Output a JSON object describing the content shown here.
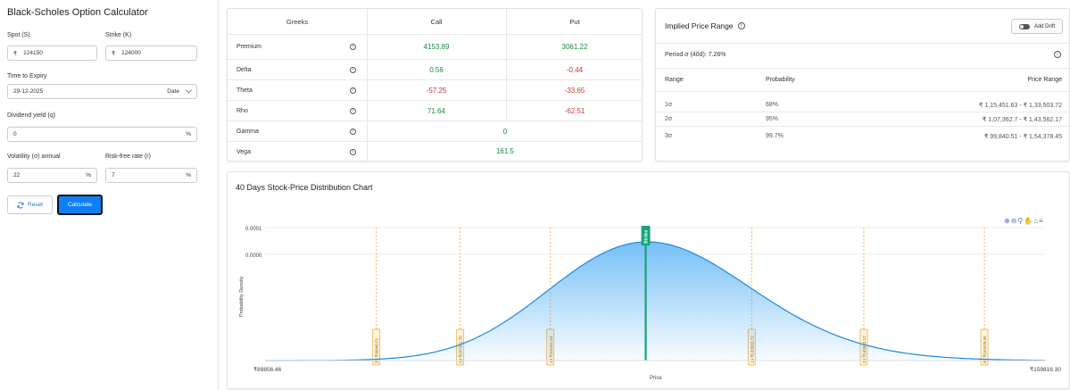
{
  "app": {
    "title": "Black-Scholes Option Calculator"
  },
  "form": {
    "spot": {
      "label": "Spot (S)",
      "prefix": "₹",
      "value": "124150"
    },
    "strike": {
      "label": "Strike (K)",
      "prefix": "₹",
      "value": "124000"
    },
    "expiry": {
      "label": "Time to Expiry",
      "value": "29-12-2025",
      "mode": "Date"
    },
    "dividend": {
      "label": "Dividend yield (q)",
      "value": "0",
      "suffix": "%"
    },
    "volatility": {
      "label": "Volatility (σ) annual",
      "value": "22",
      "suffix": "%"
    },
    "riskfree": {
      "label": "Risk-free rate (r)",
      "value": "7",
      "suffix": "%"
    },
    "reset_label": "Reset",
    "calculate_label": "Calculate"
  },
  "greeks": {
    "headers": {
      "name": "Greeks",
      "call": "Call",
      "put": "Put"
    },
    "rows": [
      {
        "name": "Premium",
        "call": "4153.89",
        "put": "3061.22"
      },
      {
        "name": "Delta",
        "call": "0.56",
        "put": "-0.44"
      },
      {
        "name": "Theta",
        "call": "-57.25",
        "put": "-33.65"
      },
      {
        "name": "Rho",
        "call": "71.64",
        "put": "-62.51"
      },
      {
        "name": "Gamma",
        "both": "0"
      },
      {
        "name": "Vega",
        "both": "161.5"
      }
    ]
  },
  "implied_range": {
    "title": "Implied Price Range",
    "add_drift_label": "Add Drift",
    "period_text": "Period σ (40d): 7.26%",
    "headers": {
      "range": "Range",
      "probability": "Probability",
      "price_range": "Price Range"
    },
    "rows": [
      {
        "range": "1σ",
        "probability": "68%",
        "price_range": "₹ 1,15,451.63 - ₹ 1,33,503.72"
      },
      {
        "range": "2σ",
        "probability": "95%",
        "price_range": "₹ 1,07,362.7 - ₹ 1,43,562.17"
      },
      {
        "range": "3σ",
        "probability": "99.7%",
        "price_range": "₹ 99,840.51 - ₹ 1,54,378.45"
      }
    ]
  },
  "chart": {
    "title": "40 Days Stock-Price Distribution Chart",
    "toolbar_icons": [
      "zoom-in-icon",
      "zoom-out-icon",
      "magnifier-icon",
      "pan-hand-icon",
      "home-icon",
      "menu-icon"
    ]
  },
  "chart_data": {
    "type": "area",
    "xlabel": "Price",
    "ylabel": "Probability Density",
    "x_range": [
      89856.46,
      159816.3
    ],
    "x_tick_labels": [
      "₹89856.46",
      "₹159816.30"
    ],
    "y_tick_labels": [
      "0.0001",
      "0.0000"
    ],
    "series": [
      {
        "distribution": "lognormal",
        "peak_price": 124150,
        "x": [
          89856.46,
          95000,
          100000,
          105000,
          110000,
          115000,
          120000,
          124150,
          128000,
          133000,
          138000,
          143000,
          148000,
          153000,
          159816.3
        ],
        "y": [
          0.0,
          3e-07,
          1.5e-06,
          5.5e-06,
          1.5e-05,
          3e-05,
          4.5e-05,
          5e-05,
          4.6e-05,
          3.3e-05,
          1.9e-05,
          8.5e-06,
          3e-06,
          9e-07,
          1e-07
        ]
      }
    ],
    "strike": {
      "label": "Strike",
      "price": 124000
    },
    "sigma_markers": [
      {
        "label": "3σ ₹99840.51",
        "price": 99840.51
      },
      {
        "label": "2σ ₹107362.70",
        "price": 107362.7
      },
      {
        "label": "1σ ₹115451.63",
        "price": 115451.63
      },
      {
        "label": "1σ ₹133503.72",
        "price": 133503.72
      },
      {
        "label": "2σ ₹143562.17",
        "price": 143562.17
      },
      {
        "label": "3σ ₹154378.45",
        "price": 154378.45
      }
    ],
    "colors": {
      "curve": "#1e88e5",
      "fill": "#5db4f5",
      "strike": "#16a37a",
      "sigma": "#f0a62c"
    },
    "grid": true
  }
}
